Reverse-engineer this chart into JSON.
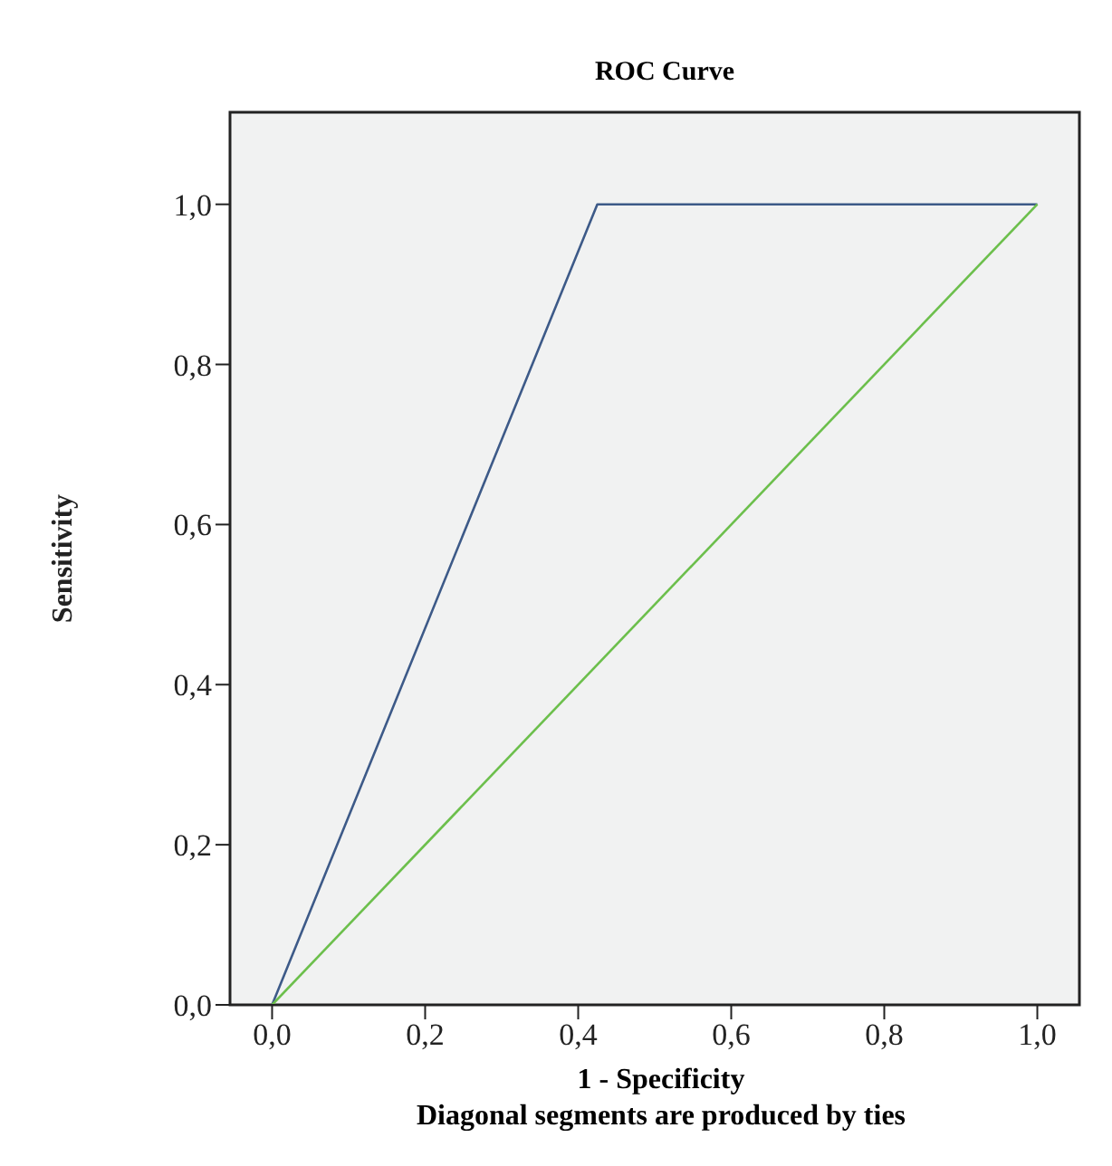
{
  "chart_data": {
    "type": "line",
    "title": "ROC Curve",
    "xlabel": "1 - Specificity",
    "ylabel": "Sensitivity",
    "annotations": [
      "Diagonal segments are produced by ties"
    ],
    "series": [
      {
        "x": [
          0,
          0.425,
          1
        ],
        "values": [
          0,
          1,
          1
        ],
        "color": "#3d5a88"
      },
      {
        "x": [
          0,
          1
        ],
        "values": [
          0,
          1
        ],
        "color": "#6cbf4c"
      }
    ],
    "xlim": [
      -0.055,
      1.055
    ],
    "ylim": [
      0,
      1.115
    ],
    "xticks": [
      {
        "value": 0,
        "label": "0,0"
      },
      {
        "value": 0.2,
        "label": "0,2"
      },
      {
        "value": 0.4,
        "label": "0,4"
      },
      {
        "value": 0.6,
        "label": "0,6"
      },
      {
        "value": 0.8,
        "label": "0,8"
      },
      {
        "value": 1,
        "label": "1,0"
      }
    ],
    "yticks": [
      {
        "value": 0,
        "label": "0,0"
      },
      {
        "value": 0.2,
        "label": "0,2"
      },
      {
        "value": 0.4,
        "label": "0,4"
      },
      {
        "value": 0.6,
        "label": "0,6"
      },
      {
        "value": 0.8,
        "label": "0,8"
      },
      {
        "value": 1,
        "label": "1,0"
      }
    ],
    "marker": "none",
    "line_style": "solid"
  }
}
